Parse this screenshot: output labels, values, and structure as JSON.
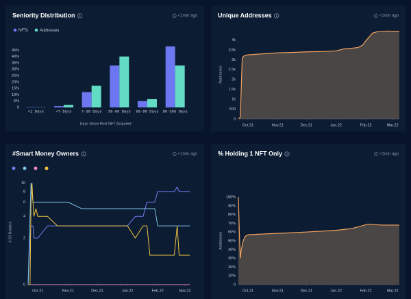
{
  "chart_data": [
    {
      "type": "bar",
      "title": "Seniority Distribution",
      "updated": "<1min ago",
      "categories": [
        "<1 Days",
        "<7 Days",
        "7-30 Days",
        "30-60 Days",
        "60-90 Days",
        "90-365 Days"
      ],
      "series": [
        {
          "name": "NFTs",
          "color": "#6e77f2",
          "values": [
            0.3,
            1,
            12,
            33,
            5,
            48
          ]
        },
        {
          "name": "Addresses",
          "color": "#62dcc5",
          "values": [
            0.2,
            2,
            17,
            40,
            6.5,
            33
          ]
        }
      ],
      "xlabel": "Days Since First NFT Acquired",
      "ylim": [
        0,
        50
      ],
      "yticks": [
        0,
        {
          "value": 5,
          "label": "5%"
        },
        {
          "value": 10,
          "label": "10%"
        },
        {
          "value": 15,
          "label": "15%"
        },
        {
          "value": 20,
          "label": "20%"
        },
        {
          "value": 25,
          "label": "25%"
        },
        {
          "value": 30,
          "label": "30%"
        },
        {
          "value": 35,
          "label": "35%"
        },
        {
          "value": 40,
          "label": "40%"
        },
        {
          "value": 45,
          "label": "45%"
        }
      ],
      "legend": "top-left",
      "grid": false
    },
    {
      "type": "area",
      "title": "Unique Addresses",
      "updated": "<1min ago",
      "ylabel": "Addresses",
      "color": "#f5a35c",
      "x": [
        -10,
        -8,
        -6,
        -4,
        0,
        15,
        31,
        50,
        61,
        80,
        92,
        100,
        108,
        115,
        120,
        122,
        130,
        135,
        145,
        158
      ],
      "values": [
        0,
        100,
        3100,
        3200,
        3250,
        3300,
        3350,
        3380,
        3400,
        3420,
        3450,
        3550,
        3580,
        3620,
        3750,
        3900,
        4350,
        4420,
        4450,
        4440
      ],
      "xlim": [
        -10,
        158
      ],
      "xticks": [
        {
          "value": 0,
          "label": "Oct.21"
        },
        {
          "value": 31,
          "label": "Nov.21"
        },
        {
          "value": 61,
          "label": "Dec.21"
        },
        {
          "value": 92,
          "label": "Jan.22"
        },
        {
          "value": 123,
          "label": "Feb.22"
        },
        {
          "value": 151,
          "label": "Mar.22"
        }
      ],
      "ylim": [
        0,
        4500
      ],
      "yticks": [
        0,
        500,
        {
          "value": 1000,
          "label": "1k"
        },
        {
          "value": 1500,
          "label": "1.5k"
        },
        {
          "value": 2000,
          "label": "2k"
        },
        {
          "value": 2500,
          "label": "2.5k"
        },
        {
          "value": 3000,
          "label": "3k"
        },
        {
          "value": 3500,
          "label": "3.5k"
        },
        {
          "value": 4000,
          "label": "4k"
        }
      ],
      "grid": false
    },
    {
      "type": "line",
      "title": "#Smart Money Owners",
      "updated": "<1min ago",
      "ylabel": "# Of Holders",
      "yscale": "symlog",
      "x": [
        -10,
        -8,
        -7,
        -6,
        -5,
        -4,
        -2,
        0,
        10,
        20,
        31,
        45,
        61,
        75,
        85,
        88,
        92,
        100,
        108,
        112,
        115,
        117,
        120,
        123,
        130,
        135,
        140,
        143,
        145,
        150,
        156
      ],
      "series": [
        {
          "color": "#6e7ff2",
          "values": [
            0,
            2,
            3,
            3,
            3,
            2,
            2,
            2,
            3,
            3,
            3,
            3,
            3,
            3,
            3,
            3,
            3,
            4,
            4,
            6,
            6,
            6,
            6,
            8,
            8,
            8,
            8,
            9,
            8,
            8,
            8
          ]
        },
        {
          "color": "#7cc4e8",
          "values": [
            0,
            4,
            10,
            8,
            6,
            6,
            6,
            6,
            6,
            6,
            6,
            5,
            5,
            5,
            5,
            5,
            5,
            5,
            5,
            5,
            5,
            5,
            5,
            3,
            3,
            3,
            3,
            3,
            3,
            3,
            3
          ]
        },
        {
          "color": "#ef86c2",
          "values": [
            0,
            0,
            0,
            0,
            0,
            0,
            0,
            0,
            0,
            0,
            0,
            0,
            0,
            0,
            0,
            0,
            0,
            0,
            0,
            0,
            0,
            0,
            0,
            0,
            0,
            0,
            0,
            0,
            0,
            0,
            0
          ]
        },
        {
          "color": "#f2c443",
          "values": [
            0,
            0,
            6,
            10,
            6,
            4,
            5,
            4,
            4,
            3,
            3,
            3,
            3,
            3,
            3,
            3,
            3,
            2,
            3,
            3,
            1,
            1,
            1,
            1,
            1,
            1,
            1,
            3,
            1,
            1,
            1
          ]
        }
      ],
      "xlim": [
        -10,
        158
      ],
      "xticks": [
        {
          "value": 0,
          "label": "Oct.21"
        },
        {
          "value": 31,
          "label": "Nov.21"
        },
        {
          "value": 61,
          "label": "Dec.21"
        },
        {
          "value": 92,
          "label": "Jan.22"
        },
        {
          "value": 123,
          "label": "Feb.22"
        },
        {
          "value": 151,
          "label": "Mar.22"
        }
      ],
      "ylim": [
        0,
        11
      ],
      "yticks": [
        0,
        2,
        4,
        6,
        8,
        10
      ],
      "legend": "top-left",
      "grid": false
    },
    {
      "type": "area",
      "title": "% Holding 1 NFT Only",
      "updated": "<1min ago",
      "ylabel": "Addresses",
      "color": "#f5a35c",
      "x": [
        -10,
        -9,
        -8,
        -7,
        -6,
        -5,
        -3,
        0,
        20,
        40,
        60,
        92,
        100,
        108,
        115,
        125,
        140,
        158
      ],
      "values": [
        100,
        60,
        30,
        40,
        45,
        50,
        55,
        57,
        58,
        59,
        60,
        62,
        63,
        64,
        66,
        69,
        68,
        68
      ],
      "xlim": [
        -10,
        158
      ],
      "xticks": [
        {
          "value": 0,
          "label": "Oct.21"
        },
        {
          "value": 31,
          "label": "Nov.21"
        },
        {
          "value": 61,
          "label": "Dec.21"
        },
        {
          "value": 92,
          "label": "Jan.22"
        },
        {
          "value": 123,
          "label": "Feb.22"
        },
        {
          "value": 151,
          "label": "Mar.22"
        }
      ],
      "ylim": [
        0,
        100
      ],
      "yticks": [
        0,
        {
          "value": 10,
          "label": "10%"
        },
        {
          "value": 20,
          "label": "20%"
        },
        {
          "value": 30,
          "label": "30%"
        },
        {
          "value": 40,
          "label": "40%"
        },
        {
          "value": 50,
          "label": "50%"
        },
        {
          "value": 60,
          "label": "60%"
        },
        {
          "value": 70,
          "label": "70%"
        },
        {
          "value": 80,
          "label": "80%"
        },
        {
          "value": 90,
          "label": "90%"
        },
        {
          "value": 100,
          "label": "100%"
        }
      ],
      "grid": false
    }
  ]
}
